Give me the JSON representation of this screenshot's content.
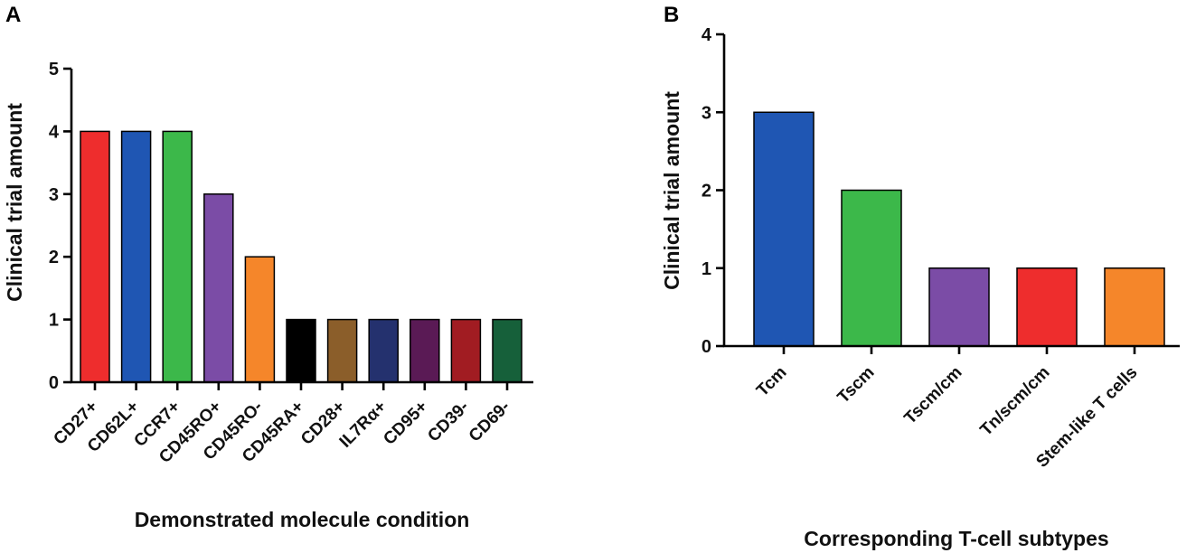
{
  "chart_data": [
    {
      "panel": "A",
      "type": "bar",
      "title": "",
      "xlabel": "Demonstrated molecule condition",
      "ylabel": "Clinical trial amount",
      "ylim": [
        0,
        5
      ],
      "yticks": [
        0,
        1,
        2,
        3,
        4,
        5
      ],
      "categories": [
        "CD27+",
        "CD62L+",
        "CCR7+",
        "CD45RO+",
        "CD45RO-",
        "CD45RA+",
        "CD28+",
        "IL7Rα+",
        "CD95+",
        "CD39-",
        "CD69-"
      ],
      "values": [
        4,
        4,
        4,
        3,
        2,
        1,
        1,
        1,
        1,
        1,
        1
      ],
      "colors": [
        "#EE2D2D",
        "#1F56B3",
        "#3CB84A",
        "#7B4CA6",
        "#F5862A",
        "#000000",
        "#8B5E2A",
        "#24316E",
        "#5A1A55",
        "#A11C22",
        "#16603A"
      ]
    },
    {
      "panel": "B",
      "type": "bar",
      "title": "",
      "xlabel": "Corresponding T-cell subtypes",
      "ylabel": "Clinical trial amount",
      "ylim": [
        0,
        4
      ],
      "yticks": [
        0,
        1,
        2,
        3,
        4
      ],
      "categories": [
        "Tcm",
        "Tscm",
        "Tscm/cm",
        "Tn/scm/cm",
        "Stem-like T cells"
      ],
      "values": [
        3,
        2,
        1,
        1,
        1
      ],
      "colors": [
        "#1F56B3",
        "#3CB84A",
        "#7B4CA6",
        "#EE2D2D",
        "#F5862A"
      ]
    }
  ]
}
